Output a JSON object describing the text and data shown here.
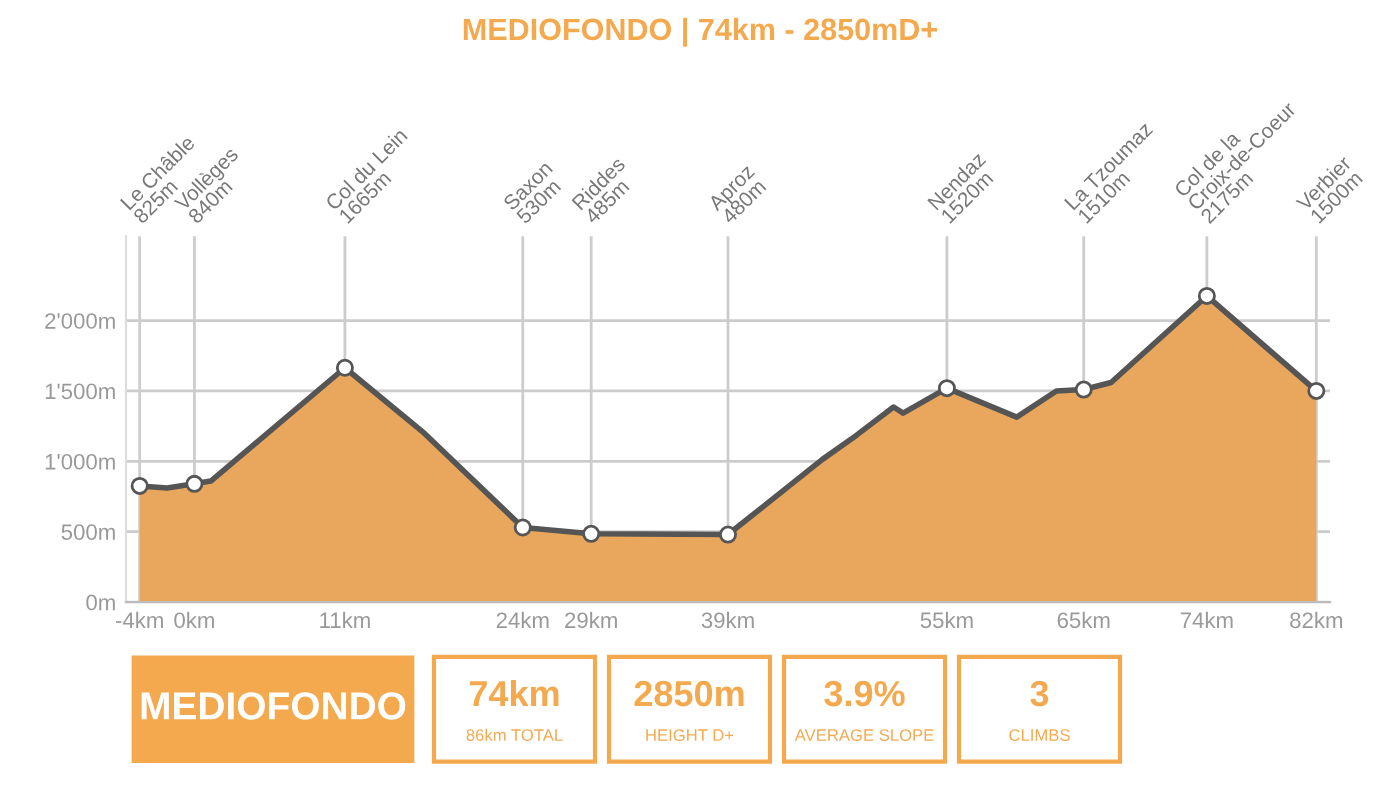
{
  "chart_data": {
    "type": "area",
    "title": "MEDIOFONDO | 74km - 2850mD+",
    "series": [
      {
        "color": "#e8a75c",
        "x": [
          -4,
          -2,
          0,
          1.2,
          11,
          16.8,
          24,
          29,
          39,
          43.7,
          45.9,
          48.4,
          51.1,
          51.8,
          55,
          60.1,
          63,
          65,
          67,
          74,
          82
        ],
        "values": [
          825,
          810,
          840,
          860,
          1665,
          1200,
          530,
          485,
          480,
          843,
          1014,
          1186,
          1386,
          1343,
          1520,
          1314,
          1500,
          1510,
          1560,
          2175,
          1500
        ]
      },
      {
        "type": "scatter",
        "color": "#ffffff",
        "marker": "circle",
        "x": [
          -4,
          0,
          11,
          24,
          29,
          39,
          55,
          65,
          74,
          82
        ],
        "values": [
          825,
          840,
          1665,
          530,
          485,
          480,
          1520,
          1510,
          2175,
          1500
        ]
      }
    ],
    "xlim": [
      -5,
      83
    ],
    "ylim": [
      0,
      2600
    ],
    "xticks": [
      {
        "value": -4,
        "label": "-4km"
      },
      {
        "value": 0,
        "label": "0km"
      },
      {
        "value": 11,
        "label": "11km"
      },
      {
        "value": 24,
        "label": "24km"
      },
      {
        "value": 29,
        "label": "29km"
      },
      {
        "value": 39,
        "label": "39km"
      },
      {
        "value": 55,
        "label": "55km"
      },
      {
        "value": 65,
        "label": "65km"
      },
      {
        "value": 74,
        "label": "74km"
      },
      {
        "value": 82,
        "label": "82km"
      }
    ],
    "yticks": [
      {
        "value": 0,
        "label": "0m"
      },
      {
        "value": 500,
        "label": "500m"
      },
      {
        "value": 1000,
        "label": "1'000m"
      },
      {
        "value": 1500,
        "label": "1'500m"
      },
      {
        "value": 2000,
        "label": "2'000m"
      }
    ],
    "grid": "y",
    "ref_lines": [
      {
        "axis": "x",
        "value": -4,
        "color": "#cccccc",
        "label": "Le Châble\n825m"
      },
      {
        "axis": "x",
        "value": 0,
        "color": "#cccccc",
        "label": "Vollèges\n840m"
      },
      {
        "axis": "x",
        "value": 11,
        "color": "#cccccc",
        "label": "Col du Lein\n1665m"
      },
      {
        "axis": "x",
        "value": 24,
        "color": "#cccccc",
        "label": "Saxon\n530m"
      },
      {
        "axis": "x",
        "value": 29,
        "color": "#cccccc",
        "label": "Riddes\n485m"
      },
      {
        "axis": "x",
        "value": 39,
        "color": "#cccccc",
        "label": "Aproz\n480m"
      },
      {
        "axis": "x",
        "value": 55,
        "color": "#cccccc",
        "label": "Nendaz\n1520m"
      },
      {
        "axis": "x",
        "value": 65,
        "color": "#cccccc",
        "label": "La Tzoumaz\n1510m"
      },
      {
        "axis": "x",
        "value": 74,
        "color": "#cccccc",
        "label": "Col de la\nCroix-de-Coeur\n2175m"
      },
      {
        "axis": "x",
        "value": 82,
        "color": "#cccccc",
        "label": "Verbier\n1500m"
      }
    ],
    "annotations": [
      "MEDIOFONDO",
      "74km",
      "86km TOTAL",
      "2850m",
      "HEIGHT D+",
      "3.9%",
      "AVERAGE SLOPE",
      "3",
      "CLIMBS"
    ]
  }
}
